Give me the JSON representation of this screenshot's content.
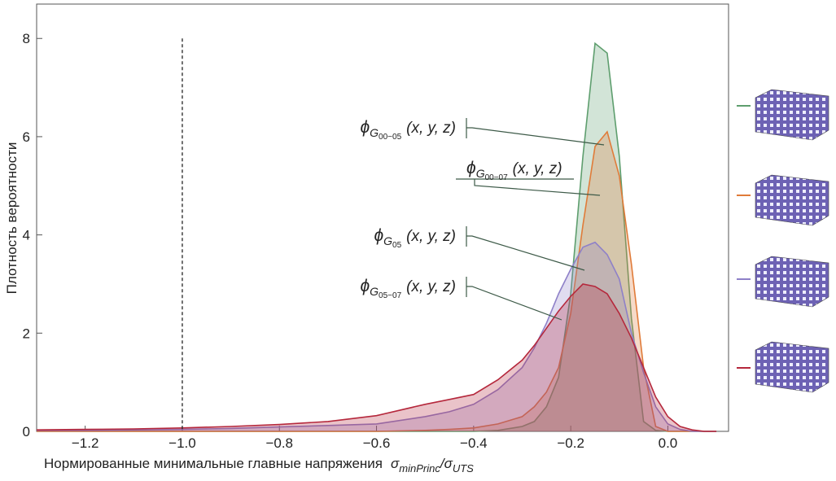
{
  "chart_data": {
    "type": "area",
    "xlabel": "Нормированные минимальные главные напряжения",
    "xlabel_symbol": {
      "num": "σ",
      "num_sub": "minPrinc",
      "sep": "/",
      "den": "σ",
      "den_sub": "UTS"
    },
    "ylabel": "Плотность вероятности",
    "x": [
      -1.3,
      -1.2,
      -1.1,
      -1.0,
      -0.9,
      -0.8,
      -0.7,
      -0.6,
      -0.5,
      -0.45,
      -0.4,
      -0.35,
      -0.3,
      -0.275,
      -0.25,
      -0.225,
      -0.2,
      -0.175,
      -0.15,
      -0.125,
      -0.1,
      -0.075,
      -0.05,
      -0.025,
      0,
      0.025,
      0.05,
      0.075,
      0.1
    ],
    "series": [
      {
        "color": "#5e9e6e",
        "label": {
          "symbol": "ϕ",
          "sub": "G",
          "subsub": "00−05",
          "args": "(x, y, z)"
        },
        "values": [
          0,
          0,
          0,
          0,
          0,
          0,
          0,
          0,
          0,
          0,
          0,
          0.02,
          0.1,
          0.2,
          0.5,
          1.1,
          2.8,
          5.6,
          7.9,
          7.7,
          5.6,
          2.3,
          0.2,
          0.02,
          0,
          0,
          0,
          0,
          0
        ]
      },
      {
        "color": "#e07b39",
        "label": {
          "symbol": "ϕ",
          "sub": "G",
          "subsub": "00−07",
          "args": "(x, y, z)"
        },
        "values": [
          0,
          0,
          0,
          0,
          0,
          0,
          0,
          0,
          0.02,
          0.04,
          0.07,
          0.15,
          0.3,
          0.5,
          0.8,
          1.3,
          2.4,
          4.2,
          5.8,
          6.1,
          5.2,
          3.4,
          1.3,
          0.1,
          0,
          0,
          0,
          0,
          0
        ]
      },
      {
        "color": "#8e80c8",
        "label": {
          "symbol": "ϕ",
          "sub": "G",
          "subsub": "05",
          "args": "(x, y, z)"
        },
        "values": [
          0.02,
          0.02,
          0.03,
          0.04,
          0.06,
          0.09,
          0.12,
          0.15,
          0.3,
          0.4,
          0.55,
          0.85,
          1.3,
          1.7,
          2.2,
          2.8,
          3.3,
          3.75,
          3.85,
          3.6,
          3.1,
          2.0,
          1.2,
          0.5,
          0.15,
          0.04,
          0,
          0,
          0
        ]
      },
      {
        "color": "#b5283c",
        "label": {
          "symbol": "ϕ",
          "sub": "G",
          "subsub": "05−07",
          "args": "(x, y, z)"
        },
        "values": [
          0.03,
          0.04,
          0.05,
          0.07,
          0.1,
          0.14,
          0.2,
          0.32,
          0.55,
          0.65,
          0.75,
          1.05,
          1.45,
          1.75,
          2.1,
          2.45,
          2.75,
          3.0,
          2.95,
          2.8,
          2.4,
          1.9,
          1.3,
          0.7,
          0.3,
          0.1,
          0.03,
          0,
          0
        ]
      }
    ],
    "vline": -1.0,
    "xlim": [
      -1.3,
      0.125
    ],
    "ylim": [
      0,
      8.7
    ],
    "xticks": [
      {
        "value": -1.2,
        "label": "−1.2"
      },
      {
        "value": -1.0,
        "label": "−1.0"
      },
      {
        "value": -0.8,
        "label": "−0.8"
      },
      {
        "value": -0.6,
        "label": "−0.6"
      },
      {
        "value": -0.4,
        "label": "−0.4"
      },
      {
        "value": -0.2,
        "label": "−0.2"
      },
      {
        "value": 0,
        "label": "0.0"
      }
    ],
    "yticks": [
      0,
      2,
      4,
      6,
      8
    ]
  }
}
